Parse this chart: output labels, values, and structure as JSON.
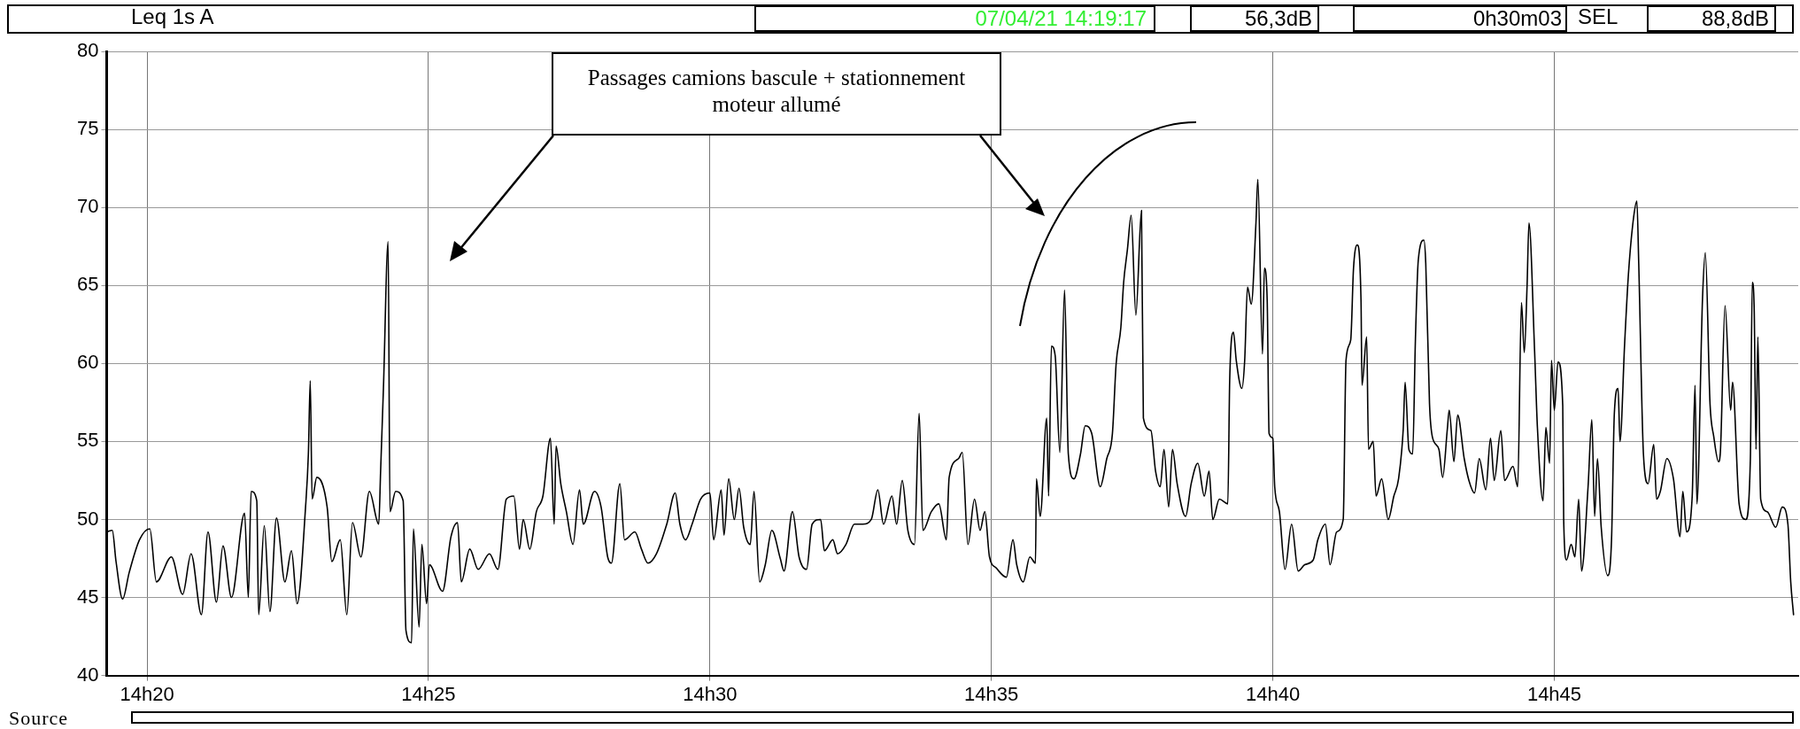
{
  "chart_data": {
    "type": "line",
    "title": "Leq 1s  A",
    "color": "#000000",
    "grid": true,
    "xlim": [
      "--04-07T14:19:17",
      "--04-07T14:49:20"
    ],
    "xticks": [
      {
        "value": "--04-07T14:20",
        "label": "14h20"
      },
      {
        "value": "--04-07T14:25",
        "label": "14h25"
      },
      {
        "value": "--04-07T14:30",
        "label": "14h30"
      },
      {
        "value": "--04-07T14:35",
        "label": "14h35"
      },
      {
        "value": "--04-07T14:40",
        "label": "14h40"
      },
      {
        "value": "--04-07T14:45",
        "label": "14h45"
      }
    ],
    "ylim": [
      40,
      80
    ],
    "yticks": [
      40,
      45,
      50,
      55,
      60,
      65,
      70,
      75,
      80
    ],
    "annotations": [
      "07/04/21 14:19:17",
      "56,3dB",
      "0h30m03",
      "SEL",
      "88,8dB",
      "Passages camions bascule + stationnement moteur allumé",
      "Source"
    ],
    "x": [
      "--04-07T14:19:17",
      "--04-07T14:19:23",
      "--04-07T14:19:27",
      "--04-07T14:19:34",
      "--04-07T14:19:41",
      "--04-07T14:19:52",
      "--04-07T14:20:03",
      "--04-07T14:20:10",
      "--04-07T14:20:26",
      "--04-07T14:20:38",
      "--04-07T14:20:47",
      "--04-07T14:20:58",
      "--04-07T14:21:05",
      "--04-07T14:21:14",
      "--04-07T14:21:21",
      "--04-07T14:21:30",
      "--04-07T14:21:44",
      "--04-07T14:21:48",
      "--04-07T14:21:51",
      "--04-07T14:21:57",
      "--04-07T14:21:59",
      "--04-07T14:22:05",
      "--04-07T14:22:11",
      "--04-07T14:22:18",
      "--04-07T14:22:27",
      "--04-07T14:22:34",
      "--04-07T14:22:40",
      "--04-07T14:22:49",
      "--04-07T14:22:52",
      "--04-07T14:22:54",
      "--04-07T14:22:56",
      "--04-07T14:23:01",
      "--04-07T14:23:12",
      "--04-07T14:23:17",
      "--04-07T14:23:26",
      "--04-07T14:23:33",
      "--04-07T14:23:39",
      "--04-07T14:23:48",
      "--04-07T14:23:57",
      "--04-07T14:24:07",
      "--04-07T14:24:09",
      "--04-07T14:24:12",
      "--04-07T14:24:17",
      "--04-07T14:24:19",
      "--04-07T14:24:25",
      "--04-07T14:24:33",
      "--04-07T14:24:36",
      "--04-07T14:24:42",
      "--04-07T14:24:44",
      "--04-07T14:24:50",
      "--04-07T14:24:53",
      "--04-07T14:24:58",
      "--04-07T14:25:01",
      "--04-07T14:25:15",
      "--04-07T14:25:24",
      "--04-07T14:25:31",
      "--04-07T14:25:35",
      "--04-07T14:25:44",
      "--04-07T14:25:53",
      "--04-07T14:26:05",
      "--04-07T14:26:14",
      "--04-07T14:26:23",
      "--04-07T14:26:31",
      "--04-07T14:26:37",
      "--04-07T14:26:41",
      "--04-07T14:26:48",
      "--04-07T14:26:55",
      "--04-07T14:27:02",
      "--04-07T14:27:10",
      "--04-07T14:27:14",
      "--04-07T14:27:16",
      "--04-07T14:27:21",
      "--04-07T14:27:27",
      "--04-07T14:27:34",
      "--04-07T14:27:41",
      "--04-07T14:27:45",
      "--04-07T14:27:57",
      "--04-07T14:28:04",
      "--04-07T14:28:11",
      "--04-07T14:28:15",
      "--04-07T14:28:24",
      "--04-07T14:28:29",
      "--04-07T14:28:40",
      "--04-07T14:28:47",
      "--04-07T14:28:54",
      "--04-07T14:29:03",
      "--04-07T14:29:14",
      "--04-07T14:29:23",
      "--04-07T14:29:28",
      "--04-07T14:29:34",
      "--04-07T14:29:41",
      "--04-07T14:29:50",
      "--04-07T14:30:00",
      "--04-07T14:30:04",
      "--04-07T14:30:12",
      "--04-07T14:30:15",
      "--04-07T14:30:20",
      "--04-07T14:30:26",
      "--04-07T14:30:31",
      "--04-07T14:30:36",
      "--04-07T14:30:43",
      "--04-07T14:30:47",
      "--04-07T14:30:53",
      "--04-07T14:30:59",
      "--04-07T14:31:06",
      "--04-07T14:31:15",
      "--04-07T14:31:19",
      "--04-07T14:31:28",
      "--04-07T14:31:35",
      "--04-07T14:31:43",
      "--04-07T14:31:49",
      "--04-07T14:31:58",
      "--04-07T14:32:02",
      "--04-07T14:32:11",
      "--04-07T14:32:16",
      "--04-07T14:32:25",
      "--04-07T14:32:34",
      "--04-07T14:32:43",
      "--04-07T14:32:52",
      "--04-07T14:32:59",
      "--04-07T14:33:05",
      "--04-07T14:33:14",
      "--04-07T14:33:19",
      "--04-07T14:33:25",
      "--04-07T14:33:31",
      "--04-07T14:33:38",
      "--04-07T14:33:43",
      "--04-07T14:33:47",
      "--04-07T14:33:56",
      "--04-07T14:34:04",
      "--04-07T14:34:12",
      "--04-07T14:34:15",
      "--04-07T14:34:25",
      "--04-07T14:34:29",
      "--04-07T14:34:35",
      "--04-07T14:34:42",
      "--04-07T14:34:48",
      "--04-07T14:34:53",
      "--04-07T14:34:58",
      "--04-07T14:35:05",
      "--04-07T14:35:16",
      "--04-07T14:35:23",
      "--04-07T14:35:27",
      "--04-07T14:35:34",
      "--04-07T14:35:41",
      "--04-07T14:35:47",
      "--04-07T14:35:48",
      "--04-07T14:35:52",
      "--04-07T14:35:59",
      "--04-07T14:36:01",
      "--04-07T14:36:04",
      "--04-07T14:36:08",
      "--04-07T14:36:13",
      "--04-07T14:36:18",
      "--04-07T14:36:22",
      "--04-07T14:36:28",
      "--04-07T14:36:35",
      "--04-07T14:36:40",
      "--04-07T14:36:47",
      "--04-07T14:36:56",
      "--04-07T14:37:03",
      "--04-07T14:37:09",
      "--04-07T14:37:13",
      "--04-07T14:37:18",
      "--04-07T14:37:21",
      "--04-07T14:37:25",
      "--04-07T14:37:29",
      "--04-07T14:37:34",
      "--04-07T14:37:40",
      "--04-07T14:37:42",
      "--04-07T14:37:50",
      "--04-07T14:37:55",
      "--04-07T14:38:00",
      "--04-07T14:38:04",
      "--04-07T14:38:09",
      "--04-07T14:38:13",
      "--04-07T14:38:18",
      "--04-07T14:38:27",
      "--04-07T14:38:33",
      "--04-07T14:38:40",
      "--04-07T14:38:47",
      "--04-07T14:38:52",
      "--04-07T14:38:56",
      "--04-07T14:39:03",
      "--04-07T14:39:12",
      "--04-07T14:39:14",
      "--04-07T14:39:18",
      "--04-07T14:39:21",
      "--04-07T14:39:27",
      "--04-07T14:39:30",
      "--04-07T14:39:33",
      "--04-07T14:39:37",
      "--04-07T14:39:42",
      "--04-07T14:39:44",
      "--04-07T14:39:49",
      "--04-07T14:39:51",
      "--04-07T14:39:54",
      "--04-07T14:39:56",
      "--04-07T14:40:00",
      "--04-07T14:40:02",
      "--04-07T14:40:07",
      "--04-07T14:40:13",
      "--04-07T14:40:20",
      "--04-07T14:40:27",
      "--04-07T14:40:34",
      "--04-07T14:40:43",
      "--04-07T14:40:48",
      "--04-07T14:40:56",
      "--04-07T14:41:01",
      "--04-07T14:41:08",
      "--04-07T14:41:15",
      "--04-07T14:41:18",
      "--04-07T14:41:23",
      "--04-07T14:41:26",
      "--04-07T14:41:30",
      "--04-07T14:41:34",
      "--04-07T14:41:35",
      "--04-07T14:41:40",
      "--04-07T14:41:42",
      "--04-07T14:41:47",
      "--04-07T14:41:50",
      "--04-07T14:41:56",
      "--04-07T14:42:03",
      "--04-07T14:42:09",
      "--04-07T14:42:14",
      "--04-07T14:42:19",
      "--04-07T14:42:21",
      "--04-07T14:42:25",
      "--04-07T14:42:29",
      "--04-07T14:42:32",
      "--04-07T14:42:35",
      "--04-07T14:42:41",
      "--04-07T14:42:43",
      "--04-07T14:42:47",
      "--04-07T14:42:50",
      "--04-07T14:42:57",
      "--04-07T14:43:01",
      "--04-07T14:43:06",
      "--04-07T14:43:08",
      "--04-07T14:43:13",
      "--04-07T14:43:17",
      "--04-07T14:43:24",
      "--04-07T14:43:29",
      "--04-07T14:43:35",
      "--04-07T14:43:40",
      "--04-07T14:43:47",
      "--04-07T14:43:52",
      "--04-07T14:43:56",
      "--04-07T14:44:03",
      "--04-07T14:44:07",
      "--04-07T14:44:16",
      "--04-07T14:44:21",
      "--04-07T14:44:25",
      "--04-07T14:44:28",
      "--04-07T14:44:31",
      "--04-07T14:44:33",
      "--04-07T14:44:39",
      "--04-07T14:44:42",
      "--04-07T14:44:48",
      "--04-07T14:44:51",
      "--04-07T14:44:55",
      "--04-07T14:44:57",
      "--04-07T14:45:00",
      "--04-07T14:45:04",
      "--04-07T14:45:09",
      "--04-07T14:45:10",
      "--04-07T14:45:13",
      "--04-07T14:45:18",
      "--04-07T14:45:22",
      "--04-07T14:45:26",
      "--04-07T14:45:29",
      "--04-07T14:45:36",
      "--04-07T14:45:40",
      "--04-07T14:45:43",
      "--04-07T14:45:46",
      "--04-07T14:45:50",
      "--04-07T14:45:57",
      "--04-07T14:46:01",
      "--04-07T14:46:04",
      "--04-07T14:46:08",
      "--04-07T14:46:10",
      "--04-07T14:46:15",
      "--04-07T14:46:19",
      "--04-07T14:46:24",
      "--04-07T14:46:28",
      "--04-07T14:46:30",
      "--04-07T14:46:35",
      "--04-07T14:46:40",
      "--04-07T14:46:46",
      "--04-07T14:46:49",
      "--04-07T14:46:53",
      "--04-07T14:47:00",
      "--04-07T14:47:07",
      "--04-07T14:47:14",
      "--04-07T14:47:17",
      "--04-07T14:47:21",
      "--04-07T14:47:27",
      "--04-07T14:47:30",
      "--04-07T14:47:32",
      "--04-07T14:47:38",
      "--04-07T14:47:41",
      "--04-07T14:47:46",
      "--04-07T14:47:50",
      "--04-07T14:47:55",
      "--04-07T14:47:57",
      "--04-07T14:48:02",
      "--04-07T14:48:08",
      "--04-07T14:48:10",
      "--04-07T14:48:17",
      "--04-07T14:48:24",
      "--04-07T14:48:29",
      "--04-07T14:48:31",
      "--04-07T14:48:33",
      "--04-07T14:48:35",
      "--04-07T14:48:37",
      "--04-07T14:48:40",
      "--04-07T14:48:47",
      "--04-07T14:48:56",
      "--04-07T14:49:03",
      "--04-07T14:49:09",
      "--04-07T14:49:12",
      "--04-07T14:49:15"
    ],
    "values": [
      49.2,
      49.3,
      47.3,
      44.9,
      46.6,
      48.7,
      49.4,
      46.0,
      47.6,
      45.2,
      47.8,
      43.9,
      49.2,
      44.7,
      48.3,
      45.0,
      50.4,
      45.0,
      51.8,
      51.2,
      43.9,
      49.6,
      44.1,
      50.1,
      46.0,
      48.0,
      44.6,
      50.8,
      54.2,
      58.9,
      51.3,
      52.7,
      50.8,
      47.3,
      48.7,
      43.9,
      49.8,
      47.6,
      51.8,
      49.7,
      53.1,
      58.4,
      67.8,
      50.5,
      51.8,
      51.2,
      42.9,
      42.1,
      49.4,
      43.1,
      48.4,
      44.6,
      47.1,
      45.4,
      48.9,
      49.8,
      46.0,
      48.1,
      46.8,
      47.8,
      46.8,
      51.3,
      51.5,
      48.1,
      50.0,
      48.1,
      50.5,
      51.5,
      55.2,
      49.7,
      54.7,
      52.3,
      50.5,
      48.4,
      51.9,
      49.7,
      51.8,
      50.8,
      47.6,
      47.2,
      52.3,
      48.7,
      49.2,
      48.1,
      47.2,
      47.8,
      49.7,
      51.7,
      49.7,
      48.7,
      49.7,
      51.3,
      51.7,
      48.7,
      51.9,
      49.0,
      52.6,
      50.0,
      52.0,
      49.5,
      48.4,
      51.8,
      46.0,
      47.1,
      49.3,
      47.5,
      46.7,
      50.5,
      47.6,
      46.8,
      49.7,
      50.0,
      48.0,
      48.7,
      47.8,
      48.4,
      49.7,
      49.7,
      50.0,
      51.9,
      49.7,
      51.5,
      49.7,
      52.5,
      49.3,
      48.4,
      56.8,
      49.3,
      50.5,
      51.0,
      48.7,
      52.7,
      53.9,
      54.3,
      48.4,
      51.3,
      49.3,
      50.5,
      47.6,
      46.9,
      46.3,
      48.7,
      47.1,
      46.0,
      47.6,
      47.2,
      52.6,
      50.2,
      56.5,
      51.5,
      61.1,
      60.5,
      54.3,
      64.7,
      54.2,
      52.6,
      54.2,
      56.0,
      55.5,
      52.1,
      53.9,
      55.5,
      60.0,
      62.3,
      65.2,
      67.3,
      69.5,
      63.1,
      69.8,
      56.5,
      55.7,
      53.1,
      52.1,
      54.5,
      50.8,
      54.5,
      52.3,
      50.2,
      52.3,
      53.6,
      51.5,
      53.1,
      50.0,
      51.3,
      51.0,
      58.9,
      62.0,
      60.2,
      58.4,
      60.2,
      64.9,
      63.8,
      69.0,
      71.8,
      60.6,
      66.1,
      64.0,
      55.5,
      55.2,
      52.1,
      50.5,
      46.8,
      49.7,
      46.7,
      47.1,
      47.4,
      48.7,
      49.7,
      47.1,
      49.2,
      50.0,
      60.2,
      61.5,
      66.1,
      67.6,
      64.0,
      58.6,
      61.7,
      54.5,
      55.0,
      51.5,
      52.6,
      50.0,
      51.5,
      52.6,
      55.8,
      58.8,
      54.5,
      54.2,
      61.6,
      66.6,
      67.9,
      66.4,
      57.4,
      55.3,
      54.5,
      52.7,
      55.8,
      57.0,
      53.7,
      56.7,
      53.9,
      52.5,
      51.7,
      53.9,
      51.9,
      55.2,
      52.5,
      55.7,
      52.5,
      53.4,
      52.1,
      63.9,
      60.7,
      65.0,
      69.0,
      60.8,
      55.9,
      51.2,
      55.9,
      53.6,
      60.2,
      57.0,
      60.1,
      57.3,
      50.0,
      47.4,
      48.4,
      47.6,
      51.3,
      46.7,
      52.1,
      56.4,
      50.2,
      53.9,
      49.5,
      46.4,
      48.7,
      56.8,
      58.4,
      55.0,
      61.3,
      65.7,
      69.1,
      70.4,
      66.4,
      54.2,
      52.3,
      54.8,
      51.3,
      51.8,
      53.9,
      52.6,
      48.9,
      51.8,
      49.2,
      51.5,
      58.6,
      51.0,
      64.2,
      67.1,
      57.4,
      55.3,
      53.7,
      54.3,
      63.7,
      57.0,
      58.8,
      51.0,
      50.0,
      53.9,
      65.2,
      63.7,
      54.5,
      61.7,
      51.3,
      50.5,
      49.5,
      50.8,
      49.7,
      46.0,
      43.9
    ]
  }
}
